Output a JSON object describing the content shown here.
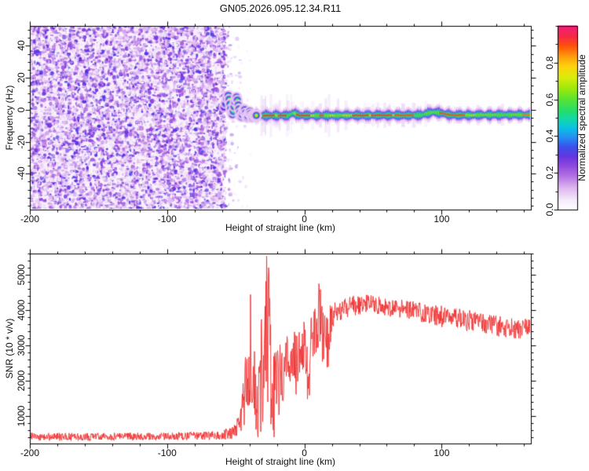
{
  "title": "GN05.2026.095.12.34.R11",
  "chart_data": [
    {
      "type": "heatmap",
      "title": "GN05.2026.095.12.34.R11",
      "xlabel": "Height of straight line (km)",
      "ylabel": "Frequency (Hz)",
      "xlim": [
        -200,
        165
      ],
      "ylim": [
        -62.5,
        52.5
      ],
      "xticks": [
        -200,
        -100,
        0,
        100
      ],
      "xtick_labels": [
        "-200",
        "-100",
        "0",
        "100"
      ],
      "xminor_step": 20,
      "yticks": [
        40,
        20,
        0,
        -20,
        -40
      ],
      "ytick_labels": [
        "40",
        "20",
        "0",
        "-20",
        "-40"
      ],
      "yminor_step": 5,
      "grid": false,
      "colorbar": {
        "label": "Normalized spectral amplitude",
        "lim": [
          0,
          1
        ],
        "ticks": [
          0.0,
          0.2,
          0.4,
          0.6,
          0.8
        ],
        "tick_labels": [
          "0.0",
          "0.2",
          "0.4",
          "0.6",
          "0.8"
        ],
        "minor_step": 0.1
      },
      "noise_field": {
        "x0": -200,
        "x1": -60,
        "fade_x1": -46,
        "value_range": [
          0.03,
          0.32
        ],
        "seed": 42
      },
      "wiggle_points": [
        [
          -58.5,
          1.5,
          0.3
        ],
        [
          -57.5,
          4,
          0.4
        ],
        [
          -56.5,
          7,
          0.5
        ],
        [
          -55.5,
          9,
          0.55
        ],
        [
          -54.8,
          6.5,
          0.78
        ],
        [
          -54.2,
          3.5,
          0.55
        ],
        [
          -53.6,
          0.5,
          0.48
        ],
        [
          -53,
          -2,
          0.52
        ],
        [
          -52.4,
          -3,
          0.5
        ],
        [
          -51.8,
          -1,
          0.55
        ],
        [
          -51.2,
          2,
          0.62
        ],
        [
          -50.6,
          5,
          0.8
        ],
        [
          -50,
          7,
          0.62
        ],
        [
          -49.4,
          8,
          0.55
        ],
        [
          -48.8,
          6,
          0.6
        ],
        [
          -48.2,
          3,
          0.7
        ],
        [
          -47.6,
          0.5,
          0.85
        ],
        [
          -47,
          -2,
          0.62
        ],
        [
          -46.4,
          -4,
          0.55
        ],
        [
          -45.8,
          -4.5,
          0.52
        ],
        [
          -45.2,
          -3,
          0.58
        ],
        [
          -44.6,
          -1,
          0.88
        ],
        [
          -44,
          0.5,
          0.65
        ],
        [
          -43.4,
          0,
          0.58
        ],
        [
          -42.8,
          -2,
          0.62
        ],
        [
          -42.2,
          -4,
          0.58
        ],
        [
          -41.6,
          -5,
          0.52
        ],
        [
          -41,
          -4,
          0.6
        ],
        [
          -40.4,
          -2,
          0.86
        ],
        [
          -39.8,
          -1,
          0.66
        ],
        [
          -39.2,
          -2.5,
          0.62
        ],
        [
          -38.6,
          -4,
          0.8
        ],
        [
          -38,
          -5,
          0.62
        ],
        [
          -37.4,
          -4,
          0.58
        ],
        [
          -36.8,
          -3,
          0.75
        ],
        [
          -36.2,
          -3.5,
          0.9
        ],
        [
          -35.6,
          -4,
          0.7
        ],
        [
          -35,
          -3.5,
          0.78
        ]
      ],
      "band": {
        "centerline": [
          [
            -35,
            -3.6
          ],
          [
            -11,
            -3.6
          ],
          [
            -9,
            -2.2
          ],
          [
            -7,
            -2.2
          ],
          [
            -5,
            -3.2
          ],
          [
            -3,
            -3.6
          ],
          [
            85,
            -3.4
          ],
          [
            89,
            -2.4
          ],
          [
            93,
            -1.6
          ],
          [
            98,
            -1.8
          ],
          [
            103,
            -2.8
          ],
          [
            108,
            -3.4
          ],
          [
            165,
            -3.1
          ]
        ],
        "core_segments": [
          [
            -35,
            -30,
            0.62
          ],
          [
            -30,
            -21,
            0.9
          ],
          [
            -21,
            -19,
            0.74
          ],
          [
            -19,
            -12.5,
            0.9
          ],
          [
            -12.5,
            -8,
            0.58
          ],
          [
            -8,
            -5.5,
            0.7
          ],
          [
            -5.5,
            4.5,
            0.9
          ],
          [
            4.5,
            7,
            0.72
          ],
          [
            7,
            10.5,
            0.64
          ],
          [
            10.5,
            14.5,
            0.88
          ],
          [
            14.5,
            18,
            0.66
          ],
          [
            18,
            22,
            0.74
          ],
          [
            22,
            28,
            0.64
          ],
          [
            28,
            33,
            0.78
          ],
          [
            33,
            35,
            0.7
          ],
          [
            35,
            47,
            0.9
          ],
          [
            47,
            49,
            0.76
          ],
          [
            49,
            64,
            0.9
          ],
          [
            64,
            66,
            0.8
          ],
          [
            66,
            80,
            0.88
          ],
          [
            80,
            88,
            0.58
          ],
          [
            88,
            98,
            0.62
          ],
          [
            98,
            117,
            0.88
          ],
          [
            117,
            125,
            0.7
          ],
          [
            125,
            140,
            0.64
          ],
          [
            140,
            150,
            0.6
          ],
          [
            150,
            159,
            0.64
          ],
          [
            159,
            165,
            0.84
          ]
        ],
        "smear_seed": 7
      }
    },
    {
      "type": "line",
      "xlabel": "Height of straight line (km)",
      "ylabel": "SNR (10 * v/v)",
      "xlim": [
        -200,
        165
      ],
      "ylim": [
        220,
        5600
      ],
      "xticks": [
        -200,
        -100,
        0,
        100
      ],
      "xtick_labels": [
        "-200",
        "-100",
        "0",
        "100"
      ],
      "xminor_step": 20,
      "yticks": [
        1000,
        2000,
        3000,
        4000,
        5000
      ],
      "ytick_labels": [
        "1000",
        "2000",
        "3000",
        "4000",
        "5000"
      ],
      "yminor_step": 200,
      "grid": false,
      "series": [
        {
          "name": "SNR",
          "color": "#ee2e2e",
          "seed": 99,
          "envelope": [
            [
              -200,
              300,
              520
            ],
            [
              -150,
              300,
              520
            ],
            [
              -100,
              310,
              530
            ],
            [
              -70,
              320,
              560
            ],
            [
              -60,
              330,
              600
            ],
            [
              -52,
              350,
              700
            ],
            [
              -47,
              380,
              1100
            ],
            [
              -44,
              400,
              2200
            ],
            [
              -41.5,
              500,
              5200
            ],
            [
              -39.5,
              400,
              4800
            ],
            [
              -37.5,
              300,
              2300
            ],
            [
              -35.5,
              250,
              3300
            ],
            [
              -33.5,
              300,
              2500
            ],
            [
              -31.5,
              250,
              3900
            ],
            [
              -29.5,
              700,
              3100
            ],
            [
              -27.5,
              300,
              5600
            ],
            [
              -26,
              300,
              5600
            ],
            [
              -24.5,
              250,
              3400
            ],
            [
              -23,
              300,
              2800
            ],
            [
              -21,
              500,
              3000
            ],
            [
              -19,
              900,
              3100
            ],
            [
              -17,
              1300,
              3200
            ],
            [
              -15,
              1500,
              3100
            ],
            [
              -13,
              1700,
              3250
            ],
            [
              -11,
              1900,
              3300
            ],
            [
              -9,
              1900,
              3300
            ],
            [
              -7,
              1700,
              3400
            ],
            [
              -5,
              1500,
              3550
            ],
            [
              -3,
              2000,
              3600
            ],
            [
              -1,
              2300,
              3700
            ],
            [
              1,
              2000,
              3700
            ],
            [
              3,
              1100,
              3850
            ],
            [
              5,
              2400,
              3900
            ],
            [
              7,
              2600,
              4000
            ],
            [
              9,
              2800,
              4150
            ],
            [
              11,
              2700,
              4950
            ],
            [
              13,
              2400,
              4100
            ],
            [
              15,
              2600,
              4000
            ],
            [
              16.5,
              700,
              3900
            ],
            [
              18,
              2800,
              4100
            ],
            [
              20,
              3200,
              4200
            ],
            [
              23,
              3400,
              4250
            ],
            [
              26,
              3600,
              4300
            ],
            [
              30,
              3750,
              4350
            ],
            [
              35,
              3850,
              4400
            ],
            [
              40,
              3850,
              4450
            ],
            [
              45,
              3900,
              4450
            ],
            [
              50,
              3900,
              4400
            ],
            [
              55,
              3850,
              4380
            ],
            [
              60,
              3820,
              4350
            ],
            [
              65,
              3800,
              4330
            ],
            [
              70,
              3780,
              4300
            ],
            [
              75,
              3730,
              4280
            ],
            [
              80,
              3700,
              4250
            ],
            [
              85,
              3660,
              4220
            ],
            [
              90,
              3620,
              4200
            ],
            [
              95,
              3570,
              4150
            ],
            [
              100,
              3520,
              4120
            ],
            [
              105,
              3500,
              4100
            ],
            [
              110,
              3460,
              4060
            ],
            [
              115,
              3420,
              4020
            ],
            [
              120,
              3400,
              4000
            ],
            [
              125,
              3360,
              3960
            ],
            [
              130,
              3320,
              3920
            ],
            [
              135,
              3300,
              3900
            ],
            [
              140,
              3260,
              3860
            ],
            [
              145,
              3220,
              3820
            ],
            [
              150,
              3180,
              3780
            ],
            [
              155,
              3140,
              3740
            ],
            [
              160,
              3280,
              3760
            ],
            [
              165,
              3270,
              3780
            ]
          ]
        }
      ]
    }
  ],
  "colormap_stops": [
    [
      0.0,
      "#ffffff"
    ],
    [
      0.05,
      "#f6ecfb"
    ],
    [
      0.12,
      "#dcb2ef"
    ],
    [
      0.18,
      "#b26ce4"
    ],
    [
      0.24,
      "#8a3fdc"
    ],
    [
      0.29,
      "#5c2de0"
    ],
    [
      0.34,
      "#3347ec"
    ],
    [
      0.39,
      "#1c87f4"
    ],
    [
      0.44,
      "#00bce8"
    ],
    [
      0.49,
      "#06d6a8"
    ],
    [
      0.54,
      "#1cdc62"
    ],
    [
      0.6,
      "#52e32a"
    ],
    [
      0.66,
      "#9ae800"
    ],
    [
      0.72,
      "#d9ec00"
    ],
    [
      0.78,
      "#ffd000"
    ],
    [
      0.84,
      "#ff9000"
    ],
    [
      0.89,
      "#ff4a00"
    ],
    [
      0.94,
      "#f7203c"
    ],
    [
      1.0,
      "#ef1475"
    ]
  ],
  "style": {
    "frame_color": "#000000",
    "tick_out_major": 6,
    "tick_out_minor": 3
  }
}
